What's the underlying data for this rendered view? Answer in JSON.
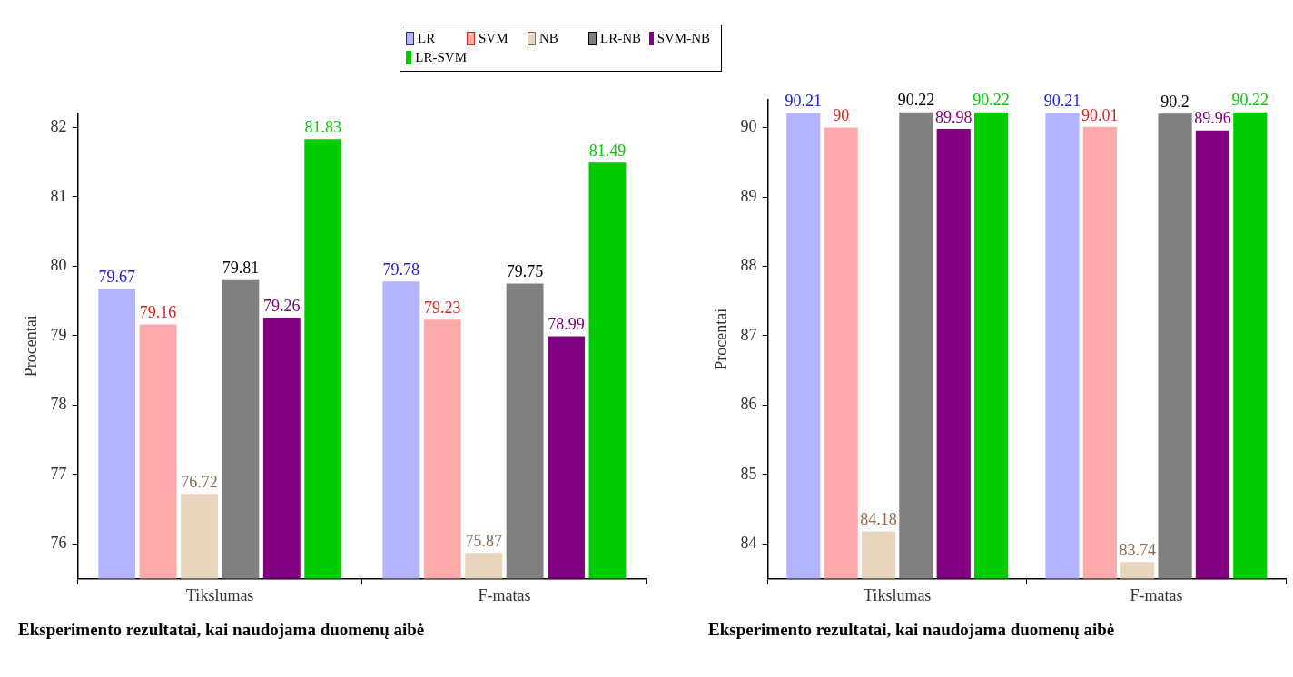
{
  "chart_data": [
    {
      "type": "bar",
      "title": "Eksperimento rezultatai, kai naudojama duomenų aibė",
      "ylabel": "Procentai",
      "categories": [
        "Tikslumas",
        "F-matas"
      ],
      "ylim": [
        75.5,
        82.2
      ],
      "yticks": [
        76,
        77,
        78,
        79,
        80,
        81,
        82
      ],
      "grid": false,
      "legend": "top",
      "data_labels": true,
      "series": [
        {
          "name": "LR",
          "color": "#b3b3ff",
          "values": [
            79.67,
            79.78
          ]
        },
        {
          "name": "SVM",
          "color": "#ffaaaa",
          "values": [
            79.16,
            79.23
          ]
        },
        {
          "name": "NB",
          "color": "#e8d5be",
          "values": [
            76.72,
            75.87
          ]
        },
        {
          "name": "LR-NB",
          "color": "#808080",
          "values": [
            79.81,
            79.75
          ]
        },
        {
          "name": "SVM-NB",
          "color": "#800080",
          "values": [
            79.26,
            78.99
          ]
        },
        {
          "name": "LR-SVM",
          "color": "#00cc00",
          "values": [
            81.83,
            81.49
          ]
        }
      ]
    },
    {
      "type": "bar",
      "title": "Eksperimento rezultatai, kai naudojama duomenų aibė",
      "ylabel": "Procentai",
      "categories": [
        "Tikslumas",
        "F-matas"
      ],
      "ylim": [
        83.5,
        90.4
      ],
      "yticks": [
        84,
        85,
        86,
        87,
        88,
        89,
        90
      ],
      "grid": false,
      "data_labels": true,
      "series": [
        {
          "color": "#b3b3ff",
          "values": [
            90.21,
            90.21
          ]
        },
        {
          "color": "#ffaaaa",
          "values": [
            90,
            90.01
          ]
        },
        {
          "color": "#e8d5be",
          "values": [
            84.18,
            83.74
          ]
        },
        {
          "color": "#808080",
          "values": [
            90.22,
            90.2
          ]
        },
        {
          "color": "#800080",
          "values": [
            89.98,
            89.96
          ]
        },
        {
          "color": "#00cc00",
          "values": [
            90.22,
            90.22
          ]
        }
      ]
    }
  ]
}
